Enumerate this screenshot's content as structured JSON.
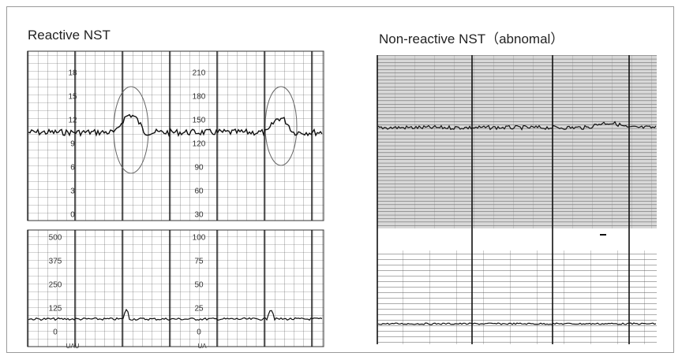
{
  "panels": [
    {
      "title": "Reactive NST",
      "fhr_left_labels": [
        "18",
        "15",
        "12",
        "9",
        "6",
        "3",
        "0"
      ],
      "fhr_mid_labels": [
        "210",
        "180",
        "150",
        "120",
        "90",
        "60",
        "30"
      ],
      "ua_left_labels": [
        "500",
        "375",
        "250",
        "125",
        "0"
      ],
      "ua_mid_labels": [
        "100",
        "75",
        "50",
        "25",
        "0"
      ],
      "ua_units": [
        "UAU",
        "UA"
      ]
    },
    {
      "title": "Non-reactive NST（abnomal）"
    }
  ]
}
